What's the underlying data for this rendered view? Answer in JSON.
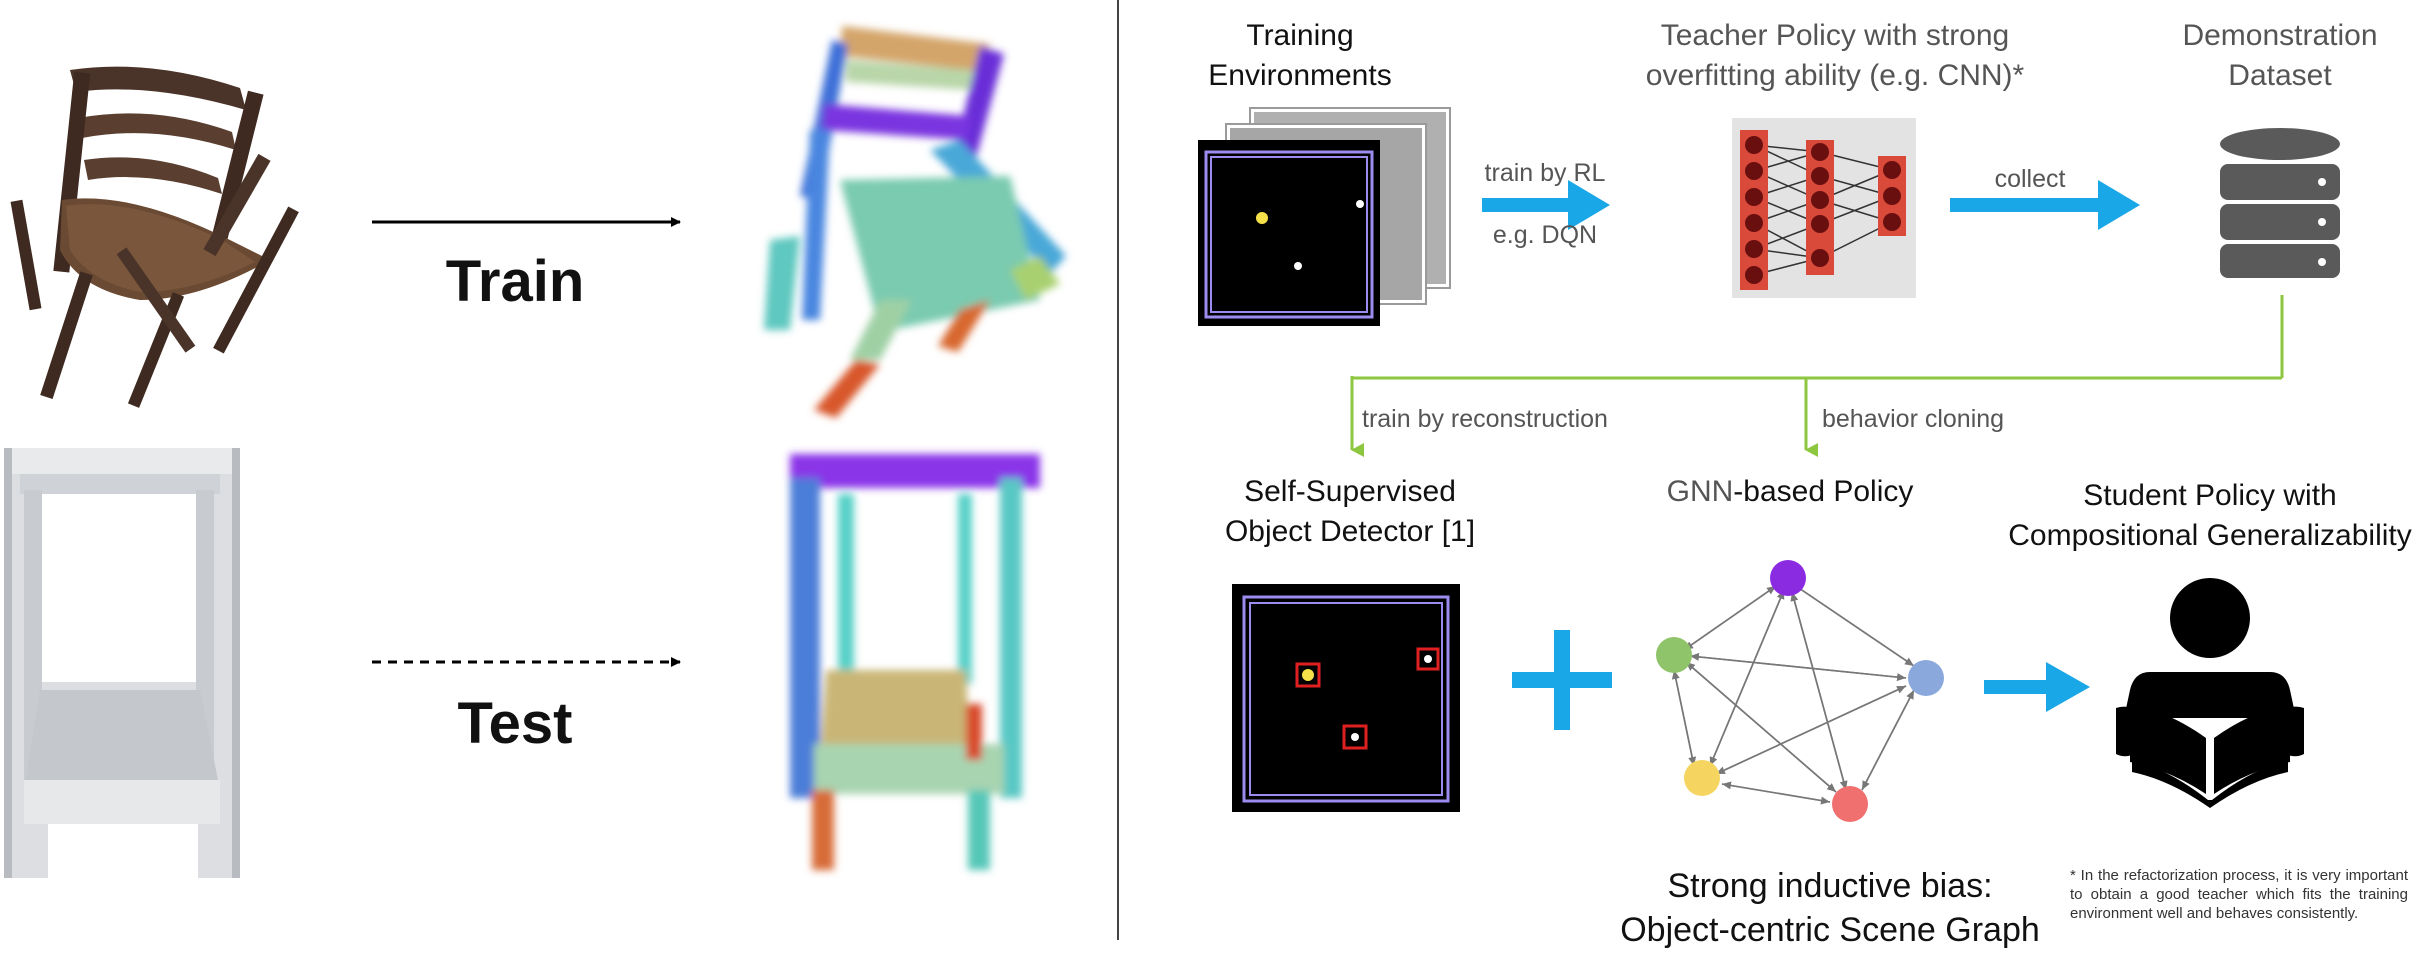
{
  "left_panel": {
    "train_label": "Train",
    "test_label": "Test"
  },
  "pipeline": {
    "training_env_title": "Training\nEnvironments",
    "teacher_title": "Teacher Policy with strong\noverfitting ability (e.g. CNN)*",
    "dataset_title": "Demonstration\nDataset",
    "train_by_rl": "train by RL",
    "eg_dqn": "e.g. DQN",
    "collect": "collect",
    "train_by_reconstruction": "train by reconstruction",
    "behavior_cloning": "behavior cloning",
    "detector_title": "Self-Supervised\nObject Detector [1]",
    "gnn_title_a": "GNN",
    "gnn_title_b": "-based Policy",
    "student_title": "Student Policy with\nCompositional Generalizability",
    "bias_title": "Strong inductive bias:\nObject-centric Scene Graph",
    "footnote": "* In the refactorization process, it is very important to obtain a good teacher which fits the training environment well and behaves consistently."
  },
  "colors": {
    "arrow_blue": "#1aa7e8",
    "green_line": "#8dc63f",
    "node_purple": "#8a2be2",
    "node_green": "#8fc46a",
    "node_blue": "#8aa8dc",
    "node_yellow": "#f5d560",
    "node_red": "#f07070",
    "cnn_red": "#d94a3a",
    "frame_purple": "#9b8cf0"
  }
}
